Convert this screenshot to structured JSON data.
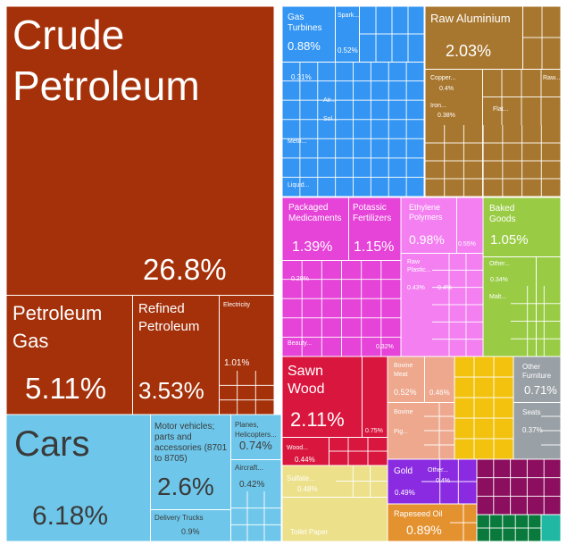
{
  "chart_data": {
    "type": "treemap",
    "units": "% of total",
    "colors": {
      "mineral": "#a4310a",
      "transport": "#6ec7ea",
      "metals": "#a8772f",
      "machines": "#3495f2",
      "chemicals": "#e643d8",
      "plastics": "#f37ff1",
      "food": "#99cc44",
      "wood": "#d9163d",
      "animal": "#eda88d",
      "paper": "#ece08a",
      "textiles": "#f2c20f",
      "misc": "#99a0a6",
      "vegetable": "#8a2be2",
      "oils": "#e49230",
      "footwear": "#8b0f5e",
      "instruments": "#0a7a3c",
      "stone": "#20b8a2"
    },
    "items": [
      {
        "group": "mineral",
        "name": "Crude Petroleum",
        "value": 26.8,
        "label": "26.8%"
      },
      {
        "group": "mineral",
        "name": "Petroleum Gas",
        "value": 5.11,
        "label": "5.11%"
      },
      {
        "group": "mineral",
        "name": "Refined Petroleum",
        "value": 3.53,
        "label": "3.53%"
      },
      {
        "group": "mineral",
        "name": "Electricity",
        "value": 1.01,
        "label": "1.01%"
      },
      {
        "group": "transport",
        "name": "Cars",
        "value": 6.18,
        "label": "6.18%"
      },
      {
        "group": "transport",
        "name": "Motor vehicles; parts and accessories (8701 to 8705)",
        "value": 2.6,
        "label": "2.6%"
      },
      {
        "group": "transport",
        "name": "Planes, Helicopters...",
        "value": 0.74,
        "label": "0.74%"
      },
      {
        "group": "transport",
        "name": "Aircraft...",
        "value": 0.42,
        "label": "0.42%"
      },
      {
        "group": "transport",
        "name": "Delivery Trucks",
        "value": 0.9,
        "label": "0.9%"
      },
      {
        "group": "machines",
        "name": "Gas Turbines",
        "value": 0.88,
        "label": "0.88%"
      },
      {
        "group": "machines",
        "name": "Spark...",
        "value": 0.52,
        "label": "0.52%"
      },
      {
        "group": "machines",
        "name": "",
        "value": 0.31,
        "label": "0.31%"
      },
      {
        "group": "machines",
        "name": "Air...",
        "value": null,
        "label": ""
      },
      {
        "group": "machines",
        "name": "Sol...",
        "value": null,
        "label": ""
      },
      {
        "group": "machines",
        "name": "Meto...",
        "value": null,
        "label": ""
      },
      {
        "group": "machines",
        "name": "Liquid...",
        "value": null,
        "label": ""
      },
      {
        "group": "metals",
        "name": "Raw Aluminium",
        "value": 2.03,
        "label": "2.03%"
      },
      {
        "group": "metals",
        "name": "Copper...",
        "value": 0.4,
        "label": "0.4%"
      },
      {
        "group": "metals",
        "name": "Raw...",
        "value": null,
        "label": ""
      },
      {
        "group": "metals",
        "name": "Iron...",
        "value": 0.38,
        "label": "0.38%"
      },
      {
        "group": "metals",
        "name": "Flat...",
        "value": null,
        "label": ""
      },
      {
        "group": "chemicals",
        "name": "Packaged Medicaments",
        "value": 1.39,
        "label": "1.39%"
      },
      {
        "group": "chemicals",
        "name": "Potassic Fertilizers",
        "value": 1.15,
        "label": "1.15%"
      },
      {
        "group": "chemicals",
        "name": "",
        "value": 0.29,
        "label": "0.29%"
      },
      {
        "group": "chemicals",
        "name": "Beauty...",
        "value": null,
        "label": ""
      },
      {
        "group": "chemicals",
        "name": "",
        "value": 0.32,
        "label": "0.32%"
      },
      {
        "group": "plastics",
        "name": "Ethylene Polymers",
        "value": 0.98,
        "label": "0.98%"
      },
      {
        "group": "plastics",
        "name": "",
        "value": 0.55,
        "label": "0.55%"
      },
      {
        "group": "plastics",
        "name": "Raw Plastic...",
        "value": 0.43,
        "label": "0.43%"
      },
      {
        "group": "plastics",
        "name": "",
        "value": 0.4,
        "label": "0.4%"
      },
      {
        "group": "food",
        "name": "Baked Goods",
        "value": 1.05,
        "label": "1.05%"
      },
      {
        "group": "food",
        "name": "Other...",
        "value": 0.34,
        "label": "0.34%"
      },
      {
        "group": "food",
        "name": "Malt...",
        "value": null,
        "label": ""
      },
      {
        "group": "wood",
        "name": "Sawn Wood",
        "value": 2.11,
        "label": "2.11%"
      },
      {
        "group": "wood",
        "name": "",
        "value": 0.75,
        "label": "0.75%"
      },
      {
        "group": "wood",
        "name": "Wood...",
        "value": 0.44,
        "label": "0.44%"
      },
      {
        "group": "animal",
        "name": "Bovine Meat",
        "value": 0.52,
        "label": "0.52%"
      },
      {
        "group": "animal",
        "name": "",
        "value": 0.46,
        "label": "0.46%"
      },
      {
        "group": "animal",
        "name": "Bovine",
        "value": null,
        "label": ""
      },
      {
        "group": "animal",
        "name": "Pig...",
        "value": null,
        "label": ""
      },
      {
        "group": "paper",
        "name": "Sulfate...",
        "value": 0.48,
        "label": "0.48%"
      },
      {
        "group": "paper",
        "name": "Toilet Paper",
        "value": null,
        "label": ""
      },
      {
        "group": "misc",
        "name": "Other Furniture",
        "value": 0.71,
        "label": "0.71%"
      },
      {
        "group": "misc",
        "name": "Seats",
        "value": 0.37,
        "label": "0.37%"
      },
      {
        "group": "vegetable",
        "name": "Gold",
        "value": 0.49,
        "label": "0.49%"
      },
      {
        "group": "vegetable",
        "name": "Other...",
        "value": 0.4,
        "label": "0.4%"
      },
      {
        "group": "oils",
        "name": "Rapeseed Oil",
        "value": 0.89,
        "label": "0.89%"
      }
    ]
  }
}
